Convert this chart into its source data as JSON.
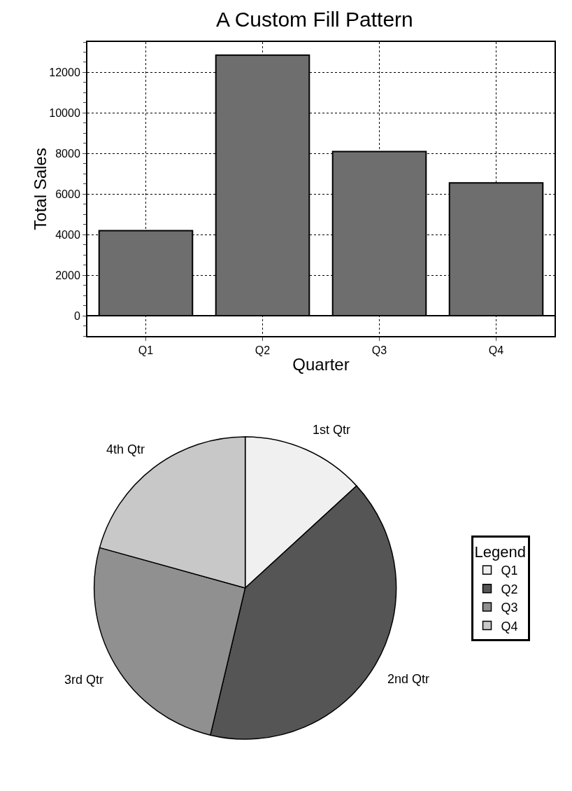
{
  "chart_data": [
    {
      "type": "bar",
      "title": "A Custom Fill Pattern",
      "xlabel": "Quarter",
      "ylabel": "Total Sales",
      "categories": [
        "Q1",
        "Q2",
        "Q3",
        "Q4"
      ],
      "values": [
        4200,
        12850,
        8100,
        6550
      ],
      "color": "#6e6e6e",
      "ylim": [
        -1000,
        13500
      ],
      "yticks": [
        0,
        2000,
        4000,
        6000,
        8000,
        10000,
        12000
      ],
      "grid": true,
      "legend": false
    },
    {
      "type": "pie",
      "legend_title": "Legend",
      "categories": [
        "Q1",
        "Q2",
        "Q3",
        "Q4"
      ],
      "values": [
        13.2,
        40.5,
        25.6,
        20.7
      ],
      "annotations": [
        "1st Qtr",
        "2nd Qtr",
        "3rd Qtr",
        "4th Qtr"
      ],
      "colors": [
        "#f0f0f0",
        "#555555",
        "#909090",
        "#c8c8c8"
      ],
      "legend": "right"
    }
  ]
}
